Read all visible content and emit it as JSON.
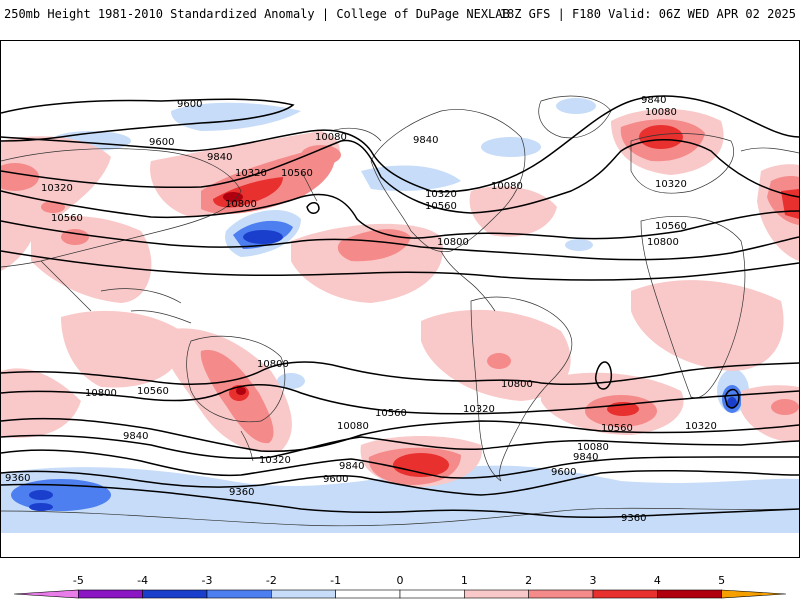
{
  "header": {
    "title": "250mb Height 1981-2010 Standardized Anomaly | College of DuPage NEXLAB",
    "run_info": "18Z GFS | F180 Valid: 06Z WED APR 02 2025"
  },
  "colors": {
    "neg5": "#e87ce8",
    "neg4": "#8a16c4",
    "neg3": "#1a3fcc",
    "neg2": "#4d7ff0",
    "neg1": "#c6dcf8",
    "zero": "#ffffff",
    "pos1": "#f9c8c8",
    "pos2": "#f58a8a",
    "pos3": "#e8302e",
    "pos4": "#b00010",
    "pos5": "#f5a000",
    "land": "#c8c8c8",
    "contour": "#000000"
  },
  "map": {
    "contour_labels": [
      {
        "id": "c-9600-a",
        "text": "9600"
      },
      {
        "id": "c-9600-b",
        "text": "9600"
      },
      {
        "id": "c-9840-a",
        "text": "9840"
      },
      {
        "id": "c-10080-a",
        "text": "10080"
      },
      {
        "id": "c-10320-a",
        "text": "10320"
      },
      {
        "id": "c-10560-a",
        "text": "10560"
      },
      {
        "id": "c-10320-b",
        "text": "10320"
      },
      {
        "id": "c-10800-a",
        "text": "10800"
      },
      {
        "id": "c-10560-b",
        "text": "10560"
      },
      {
        "id": "c-9840-b",
        "text": "9840"
      },
      {
        "id": "c-10320-c",
        "text": "10320"
      },
      {
        "id": "c-10560-c",
        "text": "10560"
      },
      {
        "id": "c-10080-b",
        "text": "10080"
      },
      {
        "id": "c-10800-b",
        "text": "10800"
      },
      {
        "id": "c-9840-c",
        "text": "9840"
      },
      {
        "id": "c-10080-c",
        "text": "10080"
      },
      {
        "id": "c-10320-d",
        "text": "10320"
      },
      {
        "id": "c-10560-d",
        "text": "10560"
      },
      {
        "id": "c-10800-c",
        "text": "10800"
      },
      {
        "id": "c-10800-d",
        "text": "10800"
      },
      {
        "id": "c-10800-e",
        "text": "10800"
      },
      {
        "id": "c-10560-e",
        "text": "10560"
      },
      {
        "id": "c-10560-f",
        "text": "10560"
      },
      {
        "id": "c-10080-d",
        "text": "10080"
      },
      {
        "id": "c-10320-e",
        "text": "10320"
      },
      {
        "id": "c-10800-f",
        "text": "10800"
      },
      {
        "id": "c-10560-g",
        "text": "10560"
      },
      {
        "id": "c-10320-f",
        "text": "10320"
      },
      {
        "id": "c-9840-d",
        "text": "9840"
      },
      {
        "id": "c-10320-g",
        "text": "10320"
      },
      {
        "id": "c-9840-e",
        "text": "9840"
      },
      {
        "id": "c-9600-c",
        "text": "9600"
      },
      {
        "id": "c-10080-e",
        "text": "10080"
      },
      {
        "id": "c-9840-f",
        "text": "9840"
      },
      {
        "id": "c-9600-d",
        "text": "9600"
      },
      {
        "id": "c-9360-a",
        "text": "9360"
      },
      {
        "id": "c-9360-b",
        "text": "9360"
      },
      {
        "id": "c-9360-c",
        "text": "9360"
      }
    ]
  },
  "legend": {
    "ticks": [
      "-5",
      "-4",
      "-3",
      "-2",
      "-1",
      "0",
      "1",
      "2",
      "3",
      "4",
      "5"
    ]
  }
}
